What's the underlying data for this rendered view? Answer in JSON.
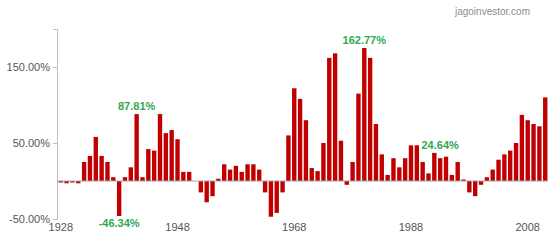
{
  "chart_data": {
    "type": "bar",
    "watermark": "jagoinvestor.com",
    "annotations": [
      "87.81%",
      "-46.34%",
      "162.77%",
      "24.64%"
    ],
    "categories": [
      "1928",
      null,
      null,
      null,
      null,
      null,
      null,
      null,
      null,
      null,
      null,
      null,
      null,
      null,
      null,
      null,
      null,
      null,
      null,
      null,
      "1948",
      null,
      null,
      null,
      null,
      null,
      null,
      null,
      null,
      null,
      null,
      null,
      null,
      null,
      null,
      null,
      null,
      null,
      null,
      null,
      "1968",
      null,
      null,
      null,
      null,
      null,
      null,
      null,
      null,
      null,
      null,
      null,
      null,
      null,
      null,
      null,
      null,
      null,
      null,
      null,
      "1988",
      null,
      null,
      null,
      null,
      null,
      null,
      null,
      null,
      null,
      null,
      null,
      null,
      null,
      null,
      null,
      null,
      null,
      null,
      null,
      "2008",
      null,
      null,
      null
    ],
    "values": [
      -2,
      -3,
      -2,
      -3,
      25,
      33,
      58,
      33,
      25,
      5,
      -46,
      5,
      18,
      88,
      5,
      42,
      40,
      88,
      63,
      67,
      55,
      12,
      12,
      0,
      -15,
      -28,
      -20,
      3,
      22,
      15,
      20,
      12,
      22,
      22,
      15,
      -15,
      -47,
      -42,
      -15,
      60,
      122,
      108,
      80,
      17,
      13,
      50,
      162,
      168,
      53,
      -5,
      25,
      115,
      175,
      162,
      75,
      35,
      8,
      30,
      18,
      30,
      47,
      47,
      25,
      10,
      37,
      30,
      32,
      8,
      25,
      2,
      -15,
      -20,
      -5,
      5,
      15,
      28,
      35,
      40,
      50,
      87,
      80,
      75,
      72,
      110
    ],
    "color": "#c00000",
    "ylim": [
      -50,
      200
    ],
    "yticks": [
      {
        "value": -50,
        "label": "-50.00%"
      },
      {
        "value": 50,
        "label": "50.00%"
      },
      {
        "value": 150,
        "label": "150.00%"
      }
    ],
    "grid": false
  }
}
